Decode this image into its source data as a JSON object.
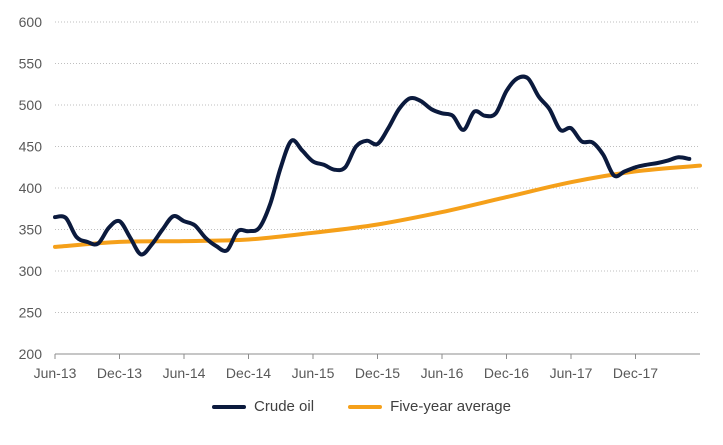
{
  "chart_data": {
    "type": "line",
    "title": "",
    "xlabel": "",
    "ylabel": "",
    "ylim": [
      200,
      600
    ],
    "yticks": [
      200,
      250,
      300,
      350,
      400,
      450,
      500,
      550,
      600
    ],
    "grid": true,
    "legend_position": "bottom",
    "x_tick_labels": [
      "Jun-13",
      "Dec-13",
      "Jun-14",
      "Dec-14",
      "Jun-15",
      "Dec-15",
      "Jun-16",
      "Dec-16",
      "Jun-17",
      "Dec-17"
    ],
    "x_range": [
      "2013-06",
      "2018-06"
    ],
    "series": [
      {
        "name": "Crude oil",
        "color": "#0b1a3d",
        "points": [
          [
            "2013-06",
            365
          ],
          [
            "2013-07",
            364
          ],
          [
            "2013-08",
            341
          ],
          [
            "2013-09",
            335
          ],
          [
            "2013-10",
            333
          ],
          [
            "2013-11",
            352
          ],
          [
            "2013-12",
            360
          ],
          [
            "2014-01",
            340
          ],
          [
            "2014-02",
            320
          ],
          [
            "2014-03",
            332
          ],
          [
            "2014-04",
            350
          ],
          [
            "2014-05",
            366
          ],
          [
            "2014-06",
            360
          ],
          [
            "2014-07",
            355
          ],
          [
            "2014-08",
            340
          ],
          [
            "2014-09",
            330
          ],
          [
            "2014-10",
            325
          ],
          [
            "2014-11",
            348
          ],
          [
            "2014-12",
            348
          ],
          [
            "2015-01",
            352
          ],
          [
            "2015-02",
            380
          ],
          [
            "2015-03",
            425
          ],
          [
            "2015-04",
            457
          ],
          [
            "2015-05",
            445
          ],
          [
            "2015-06",
            432
          ],
          [
            "2015-07",
            428
          ],
          [
            "2015-08",
            422
          ],
          [
            "2015-09",
            425
          ],
          [
            "2015-10",
            450
          ],
          [
            "2015-11",
            457
          ],
          [
            "2015-12",
            453
          ],
          [
            "2016-01",
            472
          ],
          [
            "2016-02",
            495
          ],
          [
            "2016-03",
            508
          ],
          [
            "2016-04",
            505
          ],
          [
            "2016-05",
            495
          ],
          [
            "2016-06",
            490
          ],
          [
            "2016-07",
            487
          ],
          [
            "2016-08",
            470
          ],
          [
            "2016-09",
            492
          ],
          [
            "2016-10",
            487
          ],
          [
            "2016-11",
            490
          ],
          [
            "2016-12",
            517
          ],
          [
            "2017-01",
            532
          ],
          [
            "2017-02",
            532
          ],
          [
            "2017-03",
            510
          ],
          [
            "2017-04",
            495
          ],
          [
            "2017-05",
            470
          ],
          [
            "2017-06",
            472
          ],
          [
            "2017-07",
            456
          ],
          [
            "2017-08",
            455
          ],
          [
            "2017-09",
            440
          ],
          [
            "2017-10",
            415
          ],
          [
            "2017-11",
            420
          ],
          [
            "2017-12",
            425
          ],
          [
            "2018-01",
            428
          ],
          [
            "2018-02",
            430
          ],
          [
            "2018-03",
            433
          ],
          [
            "2018-04",
            437
          ],
          [
            "2018-05",
            435
          ]
        ]
      },
      {
        "name": "Five-year average",
        "color": "#f5a01a",
        "points": [
          [
            "2013-06",
            329
          ],
          [
            "2013-12",
            335
          ],
          [
            "2014-06",
            336
          ],
          [
            "2014-12",
            338
          ],
          [
            "2015-06",
            346
          ],
          [
            "2015-12",
            356
          ],
          [
            "2016-06",
            371
          ],
          [
            "2016-12",
            389
          ],
          [
            "2017-06",
            407
          ],
          [
            "2017-12",
            420
          ],
          [
            "2018-06",
            427
          ]
        ]
      }
    ]
  }
}
